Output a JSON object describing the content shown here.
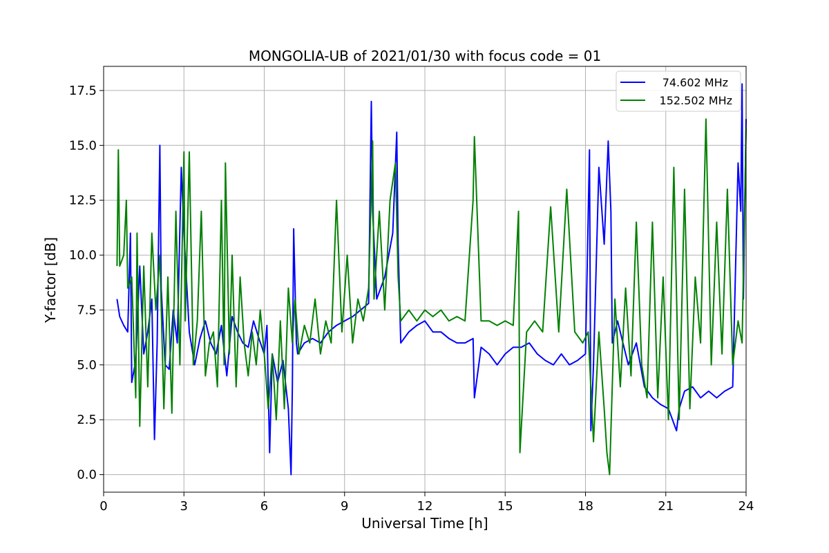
{
  "chart_data": {
    "type": "line",
    "title": "MONGOLIA-UB of 2021/01/30 with focus code = 01",
    "xlabel": "Universal Time [h]",
    "ylabel": "Y-factor [dB]",
    "xlim": [
      0,
      24
    ],
    "ylim": [
      -0.8,
      18.6
    ],
    "xticks": [
      0,
      3,
      6,
      9,
      12,
      15,
      18,
      21,
      24
    ],
    "xtick_labels": [
      "0",
      "3",
      "6",
      "9",
      "12",
      "15",
      "18",
      "21",
      "24"
    ],
    "yticks": [
      0,
      2.5,
      5,
      7.5,
      10,
      12.5,
      15,
      17.5
    ],
    "ytick_labels": [
      "0.0",
      "2.5",
      "5.0",
      "7.5",
      "10.0",
      "12.5",
      "15.0",
      "17.5"
    ],
    "grid": true,
    "legend_position": "top-right",
    "series": [
      {
        "name": "74.602 MHz",
        "color": "#0000ff",
        "x": [
          0.5,
          0.6,
          0.75,
          0.9,
          1.0,
          1.05,
          1.2,
          1.35,
          1.5,
          1.65,
          1.8,
          1.9,
          2.0,
          2.1,
          2.15,
          2.3,
          2.45,
          2.6,
          2.75,
          2.9,
          3.0,
          3.2,
          3.4,
          3.6,
          3.8,
          4.0,
          4.2,
          4.4,
          4.6,
          4.8,
          5.0,
          5.2,
          5.4,
          5.6,
          5.8,
          6.0,
          6.1,
          6.2,
          6.3,
          6.5,
          6.7,
          6.9,
          7.0,
          7.05,
          7.1,
          7.2,
          7.25,
          7.5,
          7.8,
          8.1,
          8.4,
          8.7,
          9.0,
          9.3,
          9.6,
          9.9,
          10.0,
          10.05,
          10.2,
          10.5,
          10.8,
          10.95,
          11.0,
          11.1,
          11.4,
          11.7,
          12.0,
          12.3,
          12.6,
          12.9,
          13.2,
          13.5,
          13.8,
          13.85,
          14.1,
          14.4,
          14.7,
          15.0,
          15.3,
          15.6,
          15.9,
          16.2,
          16.5,
          16.8,
          17.1,
          17.4,
          17.7,
          18.0,
          18.15,
          18.2,
          18.3,
          18.5,
          18.7,
          18.85,
          18.95,
          19.0,
          19.2,
          19.4,
          19.6,
          19.9,
          20.2,
          20.5,
          20.8,
          21.1,
          21.4,
          21.5,
          21.7,
          22.0,
          22.3,
          22.6,
          22.9,
          23.2,
          23.5,
          23.7,
          23.8,
          23.85,
          23.9,
          24.0
        ],
        "values": [
          8.0,
          7.2,
          6.8,
          6.5,
          11.0,
          4.2,
          5.2,
          9.5,
          5.5,
          6.5,
          8.0,
          1.6,
          6.0,
          15.0,
          8.5,
          5.0,
          4.8,
          7.5,
          6.0,
          14.0,
          11.0,
          6.5,
          5.0,
          6.2,
          7.0,
          6.0,
          5.5,
          6.8,
          4.5,
          7.2,
          6.5,
          6.0,
          5.8,
          7.0,
          6.2,
          5.5,
          6.8,
          1.0,
          5.5,
          4.2,
          5.2,
          3.0,
          0.0,
          4.0,
          11.2,
          6.0,
          5.5,
          6.0,
          6.2,
          6.0,
          6.5,
          6.8,
          7.0,
          7.2,
          7.5,
          7.8,
          17.0,
          12.0,
          8.0,
          9.0,
          11.0,
          15.6,
          10.5,
          6.0,
          6.5,
          6.8,
          7.0,
          6.5,
          6.5,
          6.2,
          6.0,
          6.0,
          6.2,
          3.5,
          5.8,
          5.5,
          5.0,
          5.5,
          5.8,
          5.8,
          6.0,
          5.5,
          5.2,
          5.0,
          5.5,
          5.0,
          5.2,
          5.5,
          14.8,
          2.0,
          5.0,
          14.0,
          10.5,
          15.2,
          12.0,
          6.0,
          7.0,
          6.0,
          5.0,
          6.0,
          4.0,
          3.5,
          3.2,
          3.0,
          2.0,
          3.0,
          3.8,
          4.0,
          3.5,
          3.8,
          3.5,
          3.8,
          4.0,
          14.2,
          12.0,
          17.8,
          8.0,
          16.2
        ]
      },
      {
        "name": "152.502 MHz",
        "color": "#008000",
        "x": [
          0.5,
          0.55,
          0.6,
          0.75,
          0.85,
          0.9,
          1.05,
          1.2,
          1.25,
          1.35,
          1.5,
          1.65,
          1.8,
          1.95,
          2.1,
          2.25,
          2.4,
          2.55,
          2.7,
          2.85,
          3.0,
          3.05,
          3.2,
          3.35,
          3.5,
          3.65,
          3.8,
          3.95,
          4.1,
          4.25,
          4.4,
          4.5,
          4.55,
          4.7,
          4.8,
          4.95,
          5.1,
          5.25,
          5.4,
          5.55,
          5.7,
          5.85,
          6.0,
          6.15,
          6.3,
          6.45,
          6.6,
          6.75,
          6.9,
          7.05,
          7.15,
          7.3,
          7.5,
          7.7,
          7.9,
          8.1,
          8.3,
          8.5,
          8.7,
          8.9,
          9.1,
          9.3,
          9.5,
          9.7,
          9.9,
          10.05,
          10.1,
          10.3,
          10.5,
          10.7,
          10.9,
          11.0,
          11.1,
          11.4,
          11.7,
          12.0,
          12.3,
          12.6,
          12.9,
          13.2,
          13.5,
          13.8,
          13.85,
          14.1,
          14.4,
          14.7,
          15.0,
          15.3,
          15.5,
          15.55,
          15.8,
          16.1,
          16.4,
          16.7,
          17.0,
          17.3,
          17.6,
          17.9,
          18.1,
          18.3,
          18.5,
          18.7,
          18.8,
          18.9,
          19.1,
          19.3,
          19.5,
          19.7,
          19.9,
          20.1,
          20.3,
          20.5,
          20.7,
          20.9,
          21.1,
          21.3,
          21.5,
          21.7,
          21.9,
          22.1,
          22.3,
          22.5,
          22.7,
          22.9,
          23.1,
          23.3,
          23.5,
          23.7,
          23.85,
          24.0
        ],
        "values": [
          9.5,
          14.8,
          9.5,
          10.0,
          12.5,
          8.5,
          9.0,
          3.5,
          11.0,
          2.2,
          9.5,
          4.0,
          11.0,
          7.5,
          10.0,
          3.0,
          9.0,
          2.8,
          12.0,
          5.0,
          14.7,
          7.0,
          14.7,
          5.0,
          7.0,
          12.0,
          4.5,
          6.0,
          6.5,
          4.0,
          12.5,
          5.0,
          14.2,
          5.5,
          10.0,
          4.0,
          9.0,
          6.0,
          4.5,
          6.5,
          5.0,
          7.5,
          5.5,
          3.0,
          5.5,
          2.5,
          7.0,
          3.0,
          8.5,
          6.0,
          8.0,
          5.5,
          6.8,
          6.0,
          8.0,
          5.5,
          7.0,
          6.0,
          12.5,
          6.5,
          10.0,
          6.0,
          8.0,
          7.0,
          8.5,
          15.2,
          8.0,
          12.0,
          7.5,
          12.5,
          14.2,
          9.0,
          7.0,
          7.5,
          7.0,
          7.5,
          7.2,
          7.5,
          7.0,
          7.2,
          7.0,
          12.5,
          15.4,
          7.0,
          7.0,
          6.8,
          7.0,
          6.8,
          12.0,
          1.0,
          6.5,
          7.0,
          6.5,
          12.2,
          6.5,
          13.0,
          6.5,
          6.0,
          6.5,
          1.5,
          6.5,
          3.0,
          1.0,
          0.0,
          8.0,
          4.0,
          8.5,
          4.5,
          11.5,
          5.0,
          3.5,
          11.5,
          3.5,
          9.0,
          2.5,
          14.0,
          2.5,
          13.0,
          3.0,
          9.0,
          6.0,
          16.2,
          5.0,
          11.5,
          5.5,
          13.0,
          5.0,
          7.0,
          6.0,
          15.8
        ]
      }
    ]
  }
}
